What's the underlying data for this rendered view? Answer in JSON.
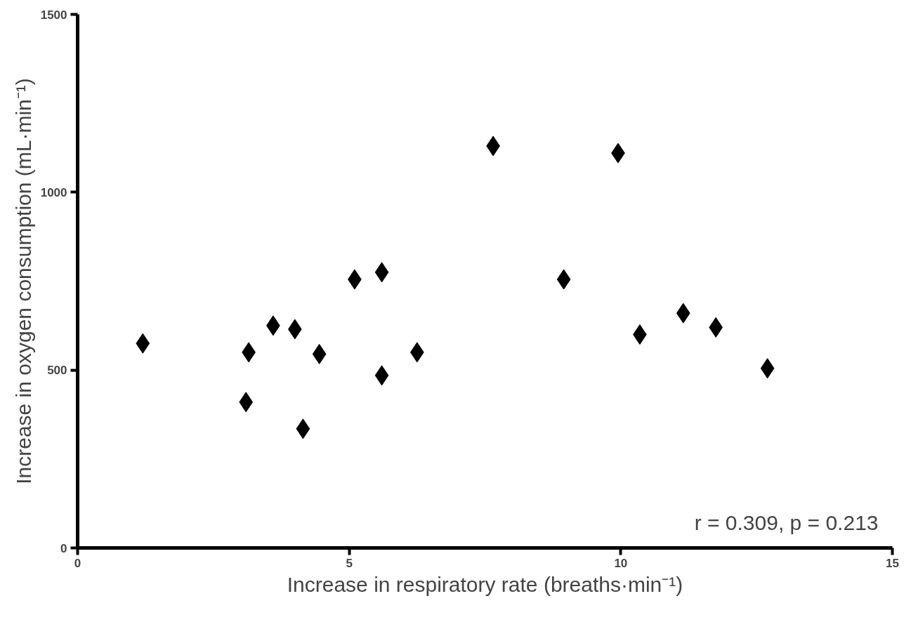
{
  "chart_data": {
    "type": "scatter",
    "xlabel": "Increase in respiratory rate (breaths·min⁻¹)",
    "ylabel": "Increase in oxygen consumption (mL·min⁻¹)",
    "x": [
      1.2,
      3.15,
      3.1,
      3.6,
      4.0,
      4.15,
      4.45,
      5.1,
      5.6,
      5.6,
      6.25,
      7.65,
      8.95,
      9.95,
      10.35,
      11.15,
      11.75,
      12.7
    ],
    "series": [
      {
        "color": "#000000",
        "values": [
          575,
          550,
          410,
          625,
          615,
          335,
          545,
          755,
          775,
          485,
          550,
          1130,
          755,
          1110,
          600,
          660,
          620,
          505
        ]
      }
    ],
    "xlim": [
      0,
      15
    ],
    "ylim": [
      0,
      1500
    ],
    "xticks": [
      0,
      5,
      10,
      15
    ],
    "yticks": [
      0,
      500,
      1000,
      1500
    ],
    "grid": false,
    "marker": "diamond",
    "annotations": [
      "r = 0.309, p = 0.213"
    ]
  }
}
